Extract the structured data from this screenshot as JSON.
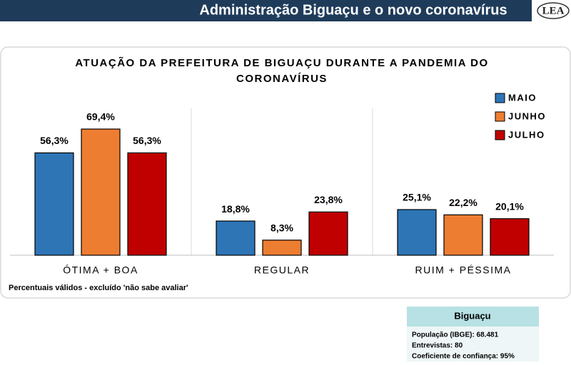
{
  "header": {
    "title": "Administração Biguaçu e o novo coronavírus",
    "logo": "LEA"
  },
  "chart_data": {
    "type": "bar",
    "title": [
      "ATUAÇÃO DA PREFEITURA DE BIGUAÇU DURANTE A PANDEMIA DO",
      "CORONAVÍRUS"
    ],
    "categories": [
      "ÓTIMA + BOA",
      "REGULAR",
      "RUIM + PÉSSIMA"
    ],
    "series": [
      {
        "name": "MAIO",
        "color": "#2e75b6",
        "values": [
          56.3,
          18.8,
          25.1
        ],
        "value_labels": [
          "56,3%",
          "18,8%",
          "25,1%"
        ]
      },
      {
        "name": "JUNHO",
        "color": "#ed7d31",
        "values": [
          69.4,
          8.3,
          22.2
        ],
        "value_labels": [
          "69,4%",
          "8,3%",
          "22,2%"
        ]
      },
      {
        "name": "JULHO",
        "color": "#c00000",
        "values": [
          56.3,
          23.8,
          20.1
        ],
        "value_labels": [
          "56,3%",
          "23,8%",
          "20,1%"
        ]
      }
    ],
    "ylim": [
      0,
      80
    ],
    "note": "Percentuais válidos - excluído 'não sabe avaliar'"
  },
  "info_box": {
    "title": "Biguaçu",
    "lines": [
      "População (IBGE): 68.481",
      "Entrevistas: 80",
      "Coeficiente de confiança: 95%"
    ]
  }
}
